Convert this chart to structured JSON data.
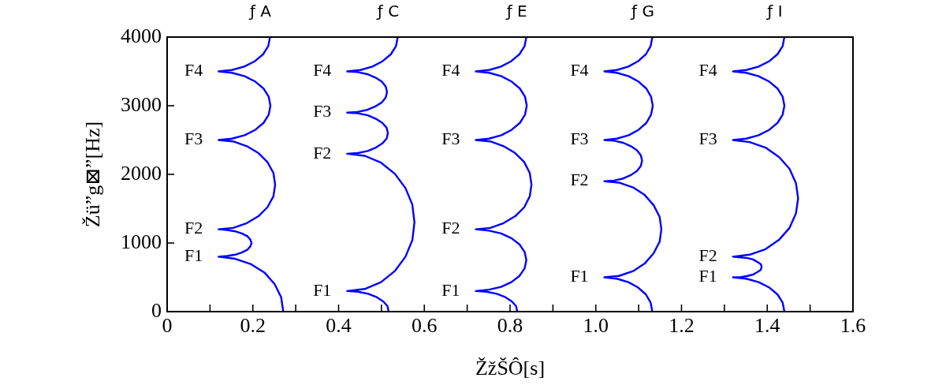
{
  "chart_data": {
    "type": "line",
    "xlabel": "ŽžŠÔ[s]",
    "ylabel": "Žü”g⊠”[Hz]",
    "xlim": [
      0,
      1.6
    ],
    "ylim": [
      0,
      4000
    ],
    "xticks": [
      0,
      {
        "value": 0.1,
        "label": null
      },
      0.2,
      {
        "value": 0.3,
        "label": null
      },
      0.4,
      {
        "value": 0.5,
        "label": null
      },
      0.6,
      {
        "value": 0.7,
        "label": null
      },
      0.8,
      {
        "value": 0.9,
        "label": null
      },
      {
        "value": 1.0,
        "label": "1.0"
      },
      {
        "value": 1.1,
        "label": null
      },
      1.2,
      {
        "value": 1.3,
        "label": null
      },
      1.4,
      {
        "value": 1.5,
        "label": null
      },
      1.6
    ],
    "yticks": [
      0,
      1000,
      2000,
      3000,
      4000
    ],
    "marker": "none",
    "line_style": "solid",
    "series": [
      {
        "name": "ƒ A",
        "color": "#0000ff",
        "x": [
          0.271,
          0.266,
          0.251,
          0.227,
          0.196,
          0.159,
          0.12,
          0.14,
          0.159,
          0.174,
          0.187,
          0.194,
          0.197,
          0.194,
          0.187,
          0.174,
          0.159,
          0.14,
          0.12,
          0.154,
          0.186,
          0.213,
          0.234,
          0.248,
          0.252,
          0.248,
          0.234,
          0.213,
          0.186,
          0.154,
          0.12,
          0.151,
          0.181,
          0.206,
          0.225,
          0.237,
          0.241,
          0.237,
          0.225,
          0.206,
          0.181,
          0.151,
          0.12,
          0.151,
          0.18,
          0.205,
          0.224,
          0.236,
          0.24
        ],
        "values": [
          0,
          210,
          400,
          570,
          690,
          770,
          800,
          810,
          830,
          860,
          900,
          950,
          1000,
          1050,
          1100,
          1140,
          1170,
          1190,
          1200,
          1220,
          1290,
          1390,
          1520,
          1680,
          1850,
          2020,
          2180,
          2310,
          2410,
          2480,
          2500,
          2520,
          2570,
          2650,
          2750,
          2870,
          3000,
          3130,
          3250,
          3350,
          3430,
          3480,
          3500,
          3520,
          3570,
          3650,
          3750,
          3870,
          4000
        ]
      },
      {
        "name": "ƒ C",
        "color": "#0000ff",
        "x": [
          0.517,
          0.514,
          0.504,
          0.489,
          0.469,
          0.445,
          0.42,
          0.461,
          0.499,
          0.531,
          0.556,
          0.572,
          0.577,
          0.572,
          0.556,
          0.531,
          0.499,
          0.461,
          0.42,
          0.445,
          0.468,
          0.487,
          0.502,
          0.512,
          0.515,
          0.512,
          0.502,
          0.487,
          0.468,
          0.445,
          0.42,
          0.444,
          0.467,
          0.486,
          0.501,
          0.51,
          0.513,
          0.51,
          0.501,
          0.486,
          0.467,
          0.444,
          0.42,
          0.451,
          0.479,
          0.503,
          0.522,
          0.534,
          0.538
        ],
        "values": [
          0,
          80,
          150,
          210,
          260,
          290,
          300,
          330,
          430,
          590,
          800,
          1040,
          1300,
          1560,
          1800,
          2010,
          2170,
          2270,
          2300,
          2310,
          2340,
          2390,
          2450,
          2520,
          2600,
          2680,
          2750,
          2810,
          2860,
          2890,
          2900,
          2910,
          2940,
          2990,
          3050,
          3120,
          3200,
          3280,
          3350,
          3410,
          3460,
          3490,
          3500,
          3520,
          3570,
          3650,
          3750,
          3870,
          4000
        ]
      },
      {
        "name": "ƒ E",
        "color": "#0000ff",
        "x": [
          0.817,
          0.814,
          0.804,
          0.789,
          0.769,
          0.745,
          0.72,
          0.751,
          0.779,
          0.803,
          0.822,
          0.834,
          0.838,
          0.834,
          0.822,
          0.803,
          0.779,
          0.751,
          0.72,
          0.754,
          0.785,
          0.812,
          0.833,
          0.846,
          0.85,
          0.846,
          0.833,
          0.812,
          0.785,
          0.754,
          0.72,
          0.751,
          0.78,
          0.804,
          0.823,
          0.835,
          0.839,
          0.835,
          0.823,
          0.804,
          0.78,
          0.751,
          0.72,
          0.751,
          0.779,
          0.803,
          0.822,
          0.834,
          0.838
        ],
        "values": [
          0,
          80,
          150,
          210,
          260,
          290,
          300,
          320,
          360,
          430,
          520,
          630,
          750,
          870,
          980,
          1070,
          1140,
          1180,
          1200,
          1220,
          1290,
          1390,
          1520,
          1680,
          1850,
          2020,
          2180,
          2310,
          2410,
          2480,
          2500,
          2520,
          2570,
          2650,
          2750,
          2870,
          3000,
          3130,
          3250,
          3350,
          3430,
          3480,
          3500,
          3520,
          3570,
          3650,
          3750,
          3870,
          4000
        ]
      },
      {
        "name": "ƒ G",
        "color": "#0000ff",
        "x": [
          1.132,
          1.128,
          1.117,
          1.099,
          1.076,
          1.049,
          1.02,
          1.054,
          1.087,
          1.114,
          1.135,
          1.149,
          1.153,
          1.149,
          1.135,
          1.114,
          1.087,
          1.054,
          1.02,
          1.043,
          1.064,
          1.082,
          1.096,
          1.105,
          1.108,
          1.105,
          1.096,
          1.082,
          1.064,
          1.043,
          1.02,
          1.049,
          1.077,
          1.1,
          1.118,
          1.129,
          1.133,
          1.129,
          1.118,
          1.1,
          1.077,
          1.049,
          1.02,
          1.049,
          1.076,
          1.099,
          1.117,
          1.128,
          1.132
        ],
        "values": [
          0,
          130,
          250,
          350,
          430,
          480,
          500,
          520,
          590,
          700,
          850,
          1020,
          1200,
          1380,
          1550,
          1700,
          1810,
          1880,
          1900,
          1910,
          1940,
          1990,
          2050,
          2120,
          2200,
          2280,
          2350,
          2410,
          2460,
          2490,
          2500,
          2520,
          2570,
          2650,
          2750,
          2870,
          3000,
          3130,
          3250,
          3350,
          3430,
          3480,
          3500,
          3520,
          3570,
          3650,
          3750,
          3870,
          4000
        ]
      },
      {
        "name": "ƒ I",
        "color": "#0000ff",
        "x": [
          1.44,
          1.436,
          1.424,
          1.405,
          1.38,
          1.351,
          1.32,
          1.337,
          1.354,
          1.367,
          1.378,
          1.385,
          1.387,
          1.385,
          1.378,
          1.367,
          1.354,
          1.337,
          1.32,
          1.359,
          1.396,
          1.428,
          1.452,
          1.467,
          1.472,
          1.467,
          1.452,
          1.428,
          1.396,
          1.359,
          1.32,
          1.351,
          1.38,
          1.405,
          1.424,
          1.436,
          1.44,
          1.436,
          1.424,
          1.405,
          1.38,
          1.351,
          1.32,
          1.351,
          1.38,
          1.405,
          1.424,
          1.436,
          1.44
        ],
        "values": [
          0,
          130,
          250,
          350,
          430,
          480,
          500,
          500,
          520,
          540,
          580,
          610,
          650,
          690,
          720,
          760,
          780,
          790,
          800,
          830,
          910,
          1050,
          1220,
          1430,
          1650,
          1870,
          2080,
          2250,
          2390,
          2470,
          2500,
          2520,
          2570,
          2650,
          2750,
          2870,
          3000,
          3130,
          3250,
          3350,
          3430,
          3480,
          3500,
          3520,
          3570,
          3650,
          3750,
          3870,
          4000
        ]
      }
    ],
    "annotations": [
      {
        "text": "F1",
        "x": 0.12,
        "y": 800
      },
      {
        "text": "F2",
        "x": 0.12,
        "y": 1200
      },
      {
        "text": "F3",
        "x": 0.12,
        "y": 2500
      },
      {
        "text": "F4",
        "x": 0.12,
        "y": 3500
      },
      {
        "text": "F1",
        "x": 0.42,
        "y": 300
      },
      {
        "text": "F2",
        "x": 0.42,
        "y": 2300
      },
      {
        "text": "F3",
        "x": 0.42,
        "y": 2900
      },
      {
        "text": "F4",
        "x": 0.42,
        "y": 3500
      },
      {
        "text": "F1",
        "x": 0.72,
        "y": 300
      },
      {
        "text": "F2",
        "x": 0.72,
        "y": 1200
      },
      {
        "text": "F3",
        "x": 0.72,
        "y": 2500
      },
      {
        "text": "F4",
        "x": 0.72,
        "y": 3500
      },
      {
        "text": "F1",
        "x": 1.02,
        "y": 500
      },
      {
        "text": "F2",
        "x": 1.02,
        "y": 1900
      },
      {
        "text": "F3",
        "x": 1.02,
        "y": 2500
      },
      {
        "text": "F4",
        "x": 1.02,
        "y": 3500
      },
      {
        "text": "F1",
        "x": 1.32,
        "y": 500
      },
      {
        "text": "F2",
        "x": 1.32,
        "y": 800
      },
      {
        "text": "F3",
        "x": 1.32,
        "y": 2500
      },
      {
        "text": "F4",
        "x": 1.32,
        "y": 3500
      }
    ]
  }
}
